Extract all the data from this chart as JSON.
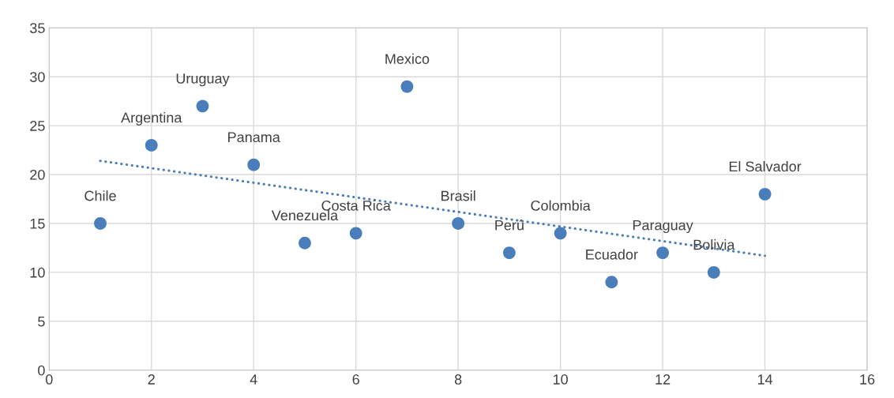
{
  "chart_data": {
    "type": "scatter",
    "xlim": [
      0,
      16
    ],
    "ylim": [
      0,
      35
    ],
    "xticks": [
      0,
      2,
      4,
      6,
      8,
      10,
      12,
      14,
      16
    ],
    "yticks": [
      0,
      5,
      10,
      15,
      20,
      25,
      30,
      35
    ],
    "grid": true,
    "legend": false,
    "series": [
      {
        "color": "#4a7ebb",
        "marker": "circle",
        "x": [
          1,
          2,
          3,
          4,
          5,
          6,
          7,
          8,
          9,
          10,
          11,
          12,
          13,
          14
        ],
        "values": [
          15,
          23,
          27,
          21,
          13,
          14,
          29,
          15,
          12,
          14,
          9,
          12,
          10,
          18
        ]
      },
      {
        "type": "line",
        "color": "#4a7ebb",
        "line_style": "dotted",
        "marker": "none",
        "x": [
          1,
          14
        ],
        "values": [
          21.4,
          11.7
        ]
      }
    ],
    "annotations": [
      {
        "text": "Chile",
        "x": 1,
        "y": 15
      },
      {
        "text": "Argentina",
        "x": 2,
        "y": 23
      },
      {
        "text": "Uruguay",
        "x": 3,
        "y": 27
      },
      {
        "text": "Panama",
        "x": 4,
        "y": 21
      },
      {
        "text": "Venezuela",
        "x": 5,
        "y": 13
      },
      {
        "text": "Costa Rica",
        "x": 6,
        "y": 14
      },
      {
        "text": "Mexico",
        "x": 7,
        "y": 29
      },
      {
        "text": "Brasil",
        "x": 8,
        "y": 15
      },
      {
        "text": "Perú",
        "x": 9,
        "y": 12
      },
      {
        "text": "Colombia",
        "x": 10,
        "y": 14
      },
      {
        "text": "Ecuador",
        "x": 11,
        "y": 9
      },
      {
        "text": "Paraguay",
        "x": 12,
        "y": 12
      },
      {
        "text": "Bolivia",
        "x": 13,
        "y": 10
      },
      {
        "text": "El Salvador",
        "x": 14,
        "y": 18
      }
    ]
  }
}
